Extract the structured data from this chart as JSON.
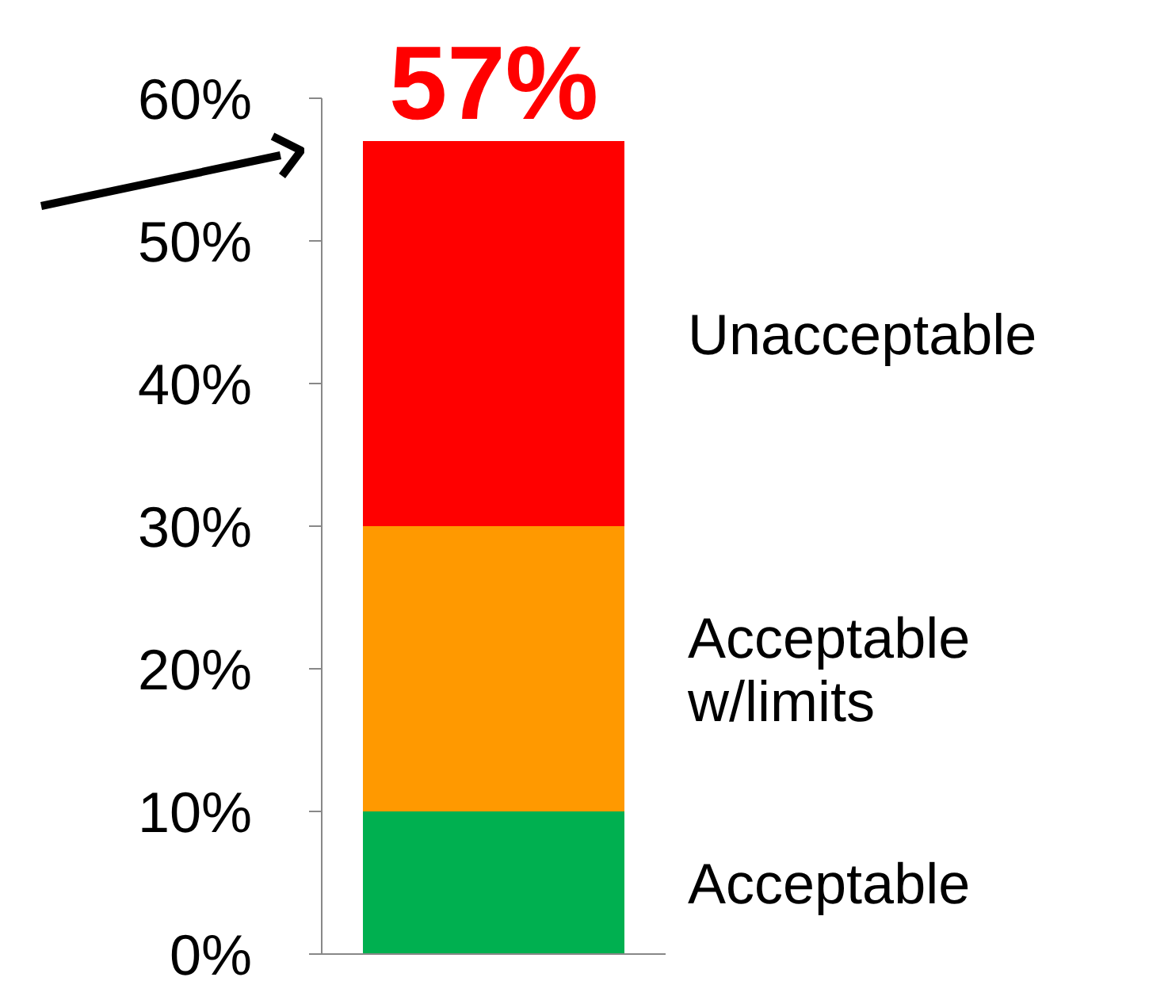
{
  "chart_data": {
    "type": "bar",
    "stacked": true,
    "categories": [
      null
    ],
    "series": [
      {
        "name": "Acceptable",
        "color": "#00b050",
        "values": [
          10
        ]
      },
      {
        "name": "Acceptable w/limits",
        "color": "#ff9900",
        "values": [
          20
        ]
      },
      {
        "name": "Unacceptable",
        "color": "#ff0000",
        "values": [
          27
        ]
      }
    ],
    "totals": [
      "57%"
    ],
    "ylim": [
      0,
      60
    ],
    "yticks": [
      {
        "value": 0,
        "label": "0%"
      },
      {
        "value": 10,
        "label": "10%"
      },
      {
        "value": 20,
        "label": "20%"
      },
      {
        "value": 30,
        "label": "30%"
      },
      {
        "value": 40,
        "label": "40%"
      },
      {
        "value": 50,
        "label": "50%"
      },
      {
        "value": 60,
        "label": "60%"
      }
    ],
    "tick_labels": "y",
    "grid": false,
    "legend": "right"
  }
}
